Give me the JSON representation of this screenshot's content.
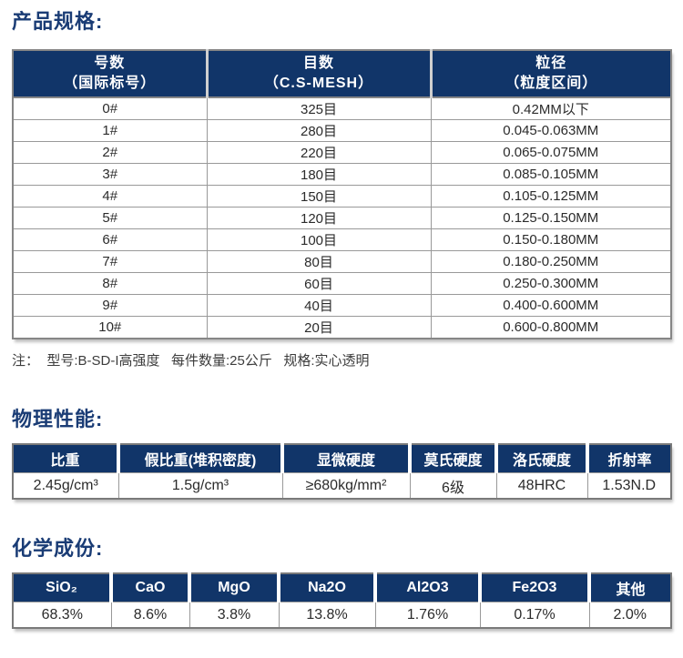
{
  "colors": {
    "accent_navy": "#113569",
    "title_navy": "#1a3c75",
    "border_gray": "#999999",
    "text_dark": "#2b2b2b"
  },
  "spec": {
    "title": "产品规格:",
    "columns": [
      {
        "line1": "号数",
        "line2": "（国际标号）"
      },
      {
        "line1": "目数",
        "line2": "（C.S-MESH）"
      },
      {
        "line1": "粒径",
        "line2": "（粒度区间）"
      }
    ],
    "rows": [
      [
        "0#",
        "325目",
        "0.42MM以下"
      ],
      [
        "1#",
        "280目",
        "0.045-0.063MM"
      ],
      [
        "2#",
        "220目",
        "0.065-0.075MM"
      ],
      [
        "3#",
        "180目",
        "0.085-0.105MM"
      ],
      [
        "4#",
        "150目",
        "0.105-0.125MM"
      ],
      [
        "5#",
        "120目",
        "0.125-0.150MM"
      ],
      [
        "6#",
        "100目",
        "0.150-0.180MM"
      ],
      [
        "7#",
        "80目",
        "0.180-0.250MM"
      ],
      [
        "8#",
        "60目",
        "0.250-0.300MM"
      ],
      [
        "9#",
        "40目",
        "0.400-0.600MM"
      ],
      [
        "10#",
        "20目",
        "0.600-0.800MM"
      ]
    ],
    "note": "注：  型号:B-SD-I高强度   每件数量:25公斤   规格:实心透明"
  },
  "physical": {
    "title": "物理性能:",
    "headers": [
      "比重",
      "假比重(堆积密度)",
      "显微硬度",
      "莫氏硬度",
      "洛氏硬度",
      "折射率"
    ],
    "values": [
      "2.45g/cm³",
      "1.5g/cm³",
      "≥680kg/mm²",
      "6级",
      "48HRC",
      "1.53N.D"
    ]
  },
  "chemical": {
    "title": "化学成份:",
    "headers": [
      "SiO₂",
      "CaO",
      "MgO",
      "Na2O",
      "Al2O3",
      "Fe2O3",
      "其他"
    ],
    "values": [
      "68.3%",
      "8.6%",
      "3.8%",
      "13.8%",
      "1.76%",
      "0.17%",
      "2.0%"
    ]
  }
}
